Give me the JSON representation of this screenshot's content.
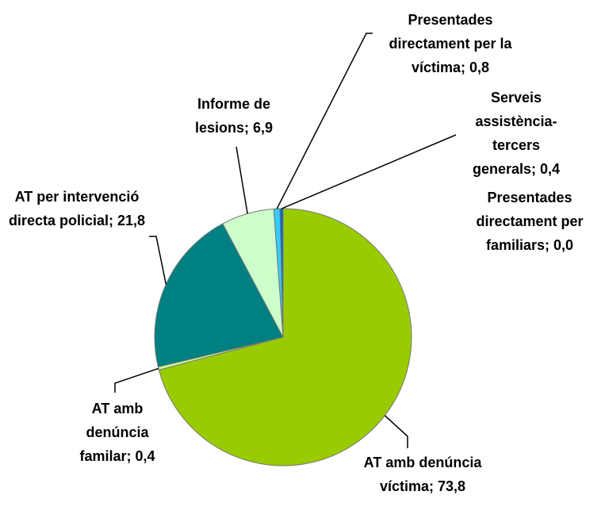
{
  "chart_data": {
    "type": "pie",
    "categories": [
      "AT amb denúncia víctima;",
      "AT amb denúncia familar;",
      "AT per intervenció directa policial;",
      "Informe de lesions;",
      "Presentades directament per la víctima;",
      "Serveis assistència-tercers generals;",
      "Presentades directament per familiars;"
    ],
    "values": [
      73.8,
      0.4,
      21.8,
      6.9,
      0.8,
      0.4,
      0.0
    ],
    "value_labels": [
      "73,8",
      "0,4",
      "21,8",
      "6,9",
      "0,8",
      "0,4",
      "0,0"
    ],
    "colors": [
      "#99cc00",
      "#ccff99",
      "#008080",
      "#ccffcc",
      "#33ccff",
      "#0066cc",
      "#9999ff"
    ]
  }
}
